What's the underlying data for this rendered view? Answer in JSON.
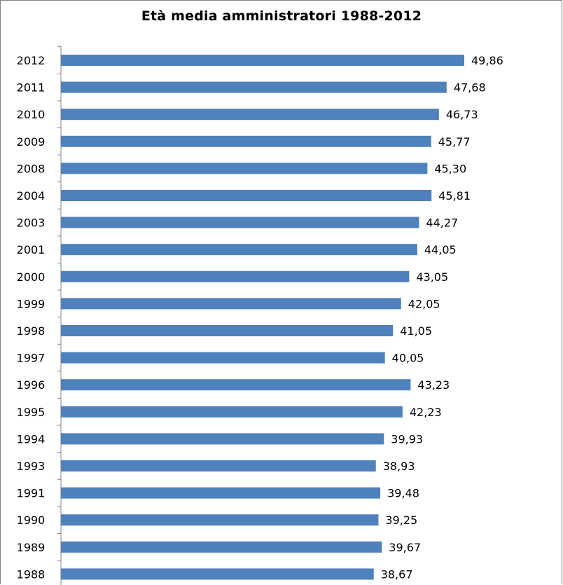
{
  "chart_data": {
    "type": "bar",
    "orientation": "horizontal",
    "title": "Età media amministratori 1988-2012",
    "categories": [
      "2012",
      "2011",
      "2010",
      "2009",
      "2008",
      "2004",
      "2003",
      "2001",
      "2000",
      "1999",
      "1998",
      "1997",
      "1996",
      "1995",
      "1994",
      "1993",
      "1991",
      "1990",
      "1989",
      "1988"
    ],
    "values": [
      49.86,
      47.68,
      46.73,
      45.77,
      45.3,
      45.81,
      44.27,
      44.05,
      43.05,
      42.05,
      41.05,
      40.05,
      43.23,
      42.23,
      39.93,
      38.93,
      39.48,
      39.25,
      39.67,
      38.67
    ],
    "value_labels": [
      "49,86",
      "47,68",
      "46,73",
      "45,77",
      "45,30",
      "45,81",
      "44,27",
      "44,05",
      "43,05",
      "42,05",
      "41,05",
      "40,05",
      "43,23",
      "42,23",
      "39,93",
      "38,93",
      "39,48",
      "39,25",
      "39,67",
      "38,67"
    ],
    "bar_color": "#4f81bd",
    "xlim": [
      0,
      49.86
    ],
    "legend": "none",
    "grid": false
  }
}
